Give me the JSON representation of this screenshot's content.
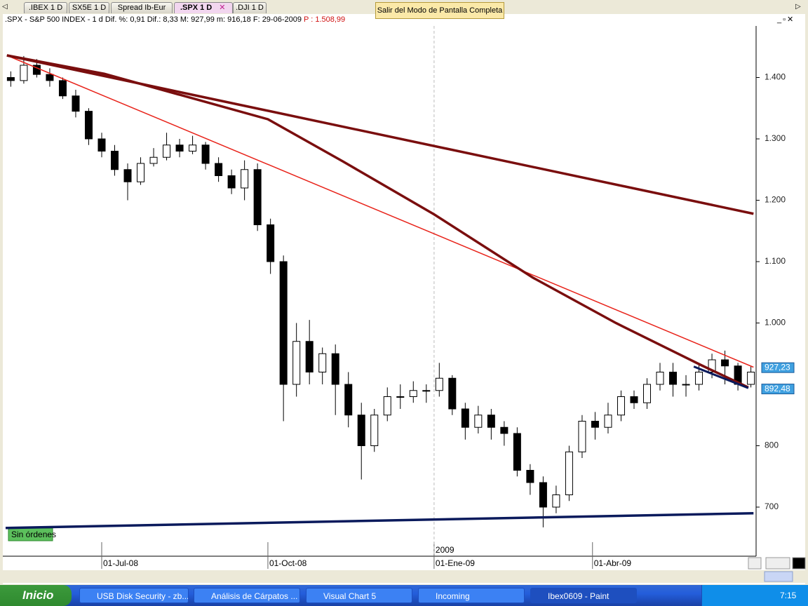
{
  "tabs": [
    ".IBEX 1 D",
    "SX5E 1 D",
    "Spread Ib-Eur",
    ".SPX 1 D",
    ".DJI 1 D"
  ],
  "fullscreen_button": "Salir del Modo de Pantalla Completa",
  "header": {
    "symbol": ".SPX - S&P 500 INDEX - 1 d",
    "dif_pct": "Dif. %: 0,91",
    "dif": "Dif.: 8,33",
    "max": "M: 927,99",
    "min": "m: 916,18",
    "date": "F: 29-06-2009",
    "price": "P : 1.508,99"
  },
  "orders_button": "Sin órdenes",
  "chart_data": {
    "type": "candlestick",
    "x": [
      2,
      7,
      12,
      17,
      22,
      27,
      32,
      37,
      42,
      47,
      52,
      57,
      62,
      67,
      72,
      77,
      82,
      87,
      92,
      97,
      102,
      107,
      112,
      117,
      122,
      127,
      132,
      137,
      142,
      147,
      152,
      157,
      162,
      167,
      172,
      177,
      182,
      187,
      192,
      197,
      202,
      207,
      212,
      217,
      222,
      227,
      232,
      237,
      242,
      247,
      252,
      257,
      262,
      267,
      272,
      277,
      282,
      287
    ],
    "open": [
      1400,
      1395,
      1420,
      1405,
      1395,
      1370,
      1345,
      1300,
      1280,
      1250,
      1230,
      1260,
      1270,
      1290,
      1280,
      1290,
      1260,
      1240,
      1220,
      1250,
      1160,
      1100,
      900,
      970,
      920,
      950,
      900,
      850,
      800,
      850,
      880,
      880,
      890,
      890,
      910,
      860,
      830,
      850,
      830,
      820,
      760,
      740,
      700,
      720,
      790,
      840,
      830,
      850,
      880,
      870,
      900,
      920,
      900,
      900,
      920,
      940,
      930,
      900
    ],
    "high": [
      1410,
      1435,
      1430,
      1415,
      1400,
      1380,
      1350,
      1310,
      1290,
      1260,
      1270,
      1285,
      1310,
      1300,
      1305,
      1295,
      1270,
      1250,
      1265,
      1260,
      1170,
      1110,
      1000,
      1005,
      960,
      965,
      920,
      870,
      860,
      895,
      900,
      905,
      900,
      935,
      915,
      870,
      865,
      860,
      840,
      830,
      770,
      750,
      735,
      800,
      850,
      855,
      870,
      890,
      890,
      910,
      935,
      935,
      915,
      935,
      950,
      955,
      935,
      930
    ],
    "low": [
      1385,
      1390,
      1400,
      1385,
      1365,
      1335,
      1290,
      1270,
      1240,
      1200,
      1225,
      1255,
      1265,
      1270,
      1275,
      1250,
      1230,
      1210,
      1200,
      1150,
      1080,
      840,
      880,
      900,
      900,
      850,
      830,
      745,
      790,
      840,
      860,
      870,
      870,
      880,
      850,
      810,
      820,
      810,
      800,
      750,
      720,
      667,
      690,
      710,
      780,
      810,
      820,
      840,
      860,
      860,
      890,
      880,
      880,
      890,
      910,
      900,
      890,
      895
    ],
    "close": [
      1395,
      1420,
      1405,
      1395,
      1370,
      1345,
      1300,
      1280,
      1250,
      1230,
      1260,
      1270,
      1290,
      1280,
      1290,
      1260,
      1240,
      1220,
      1250,
      1160,
      1100,
      900,
      970,
      920,
      950,
      900,
      850,
      800,
      850,
      880,
      880,
      890,
      890,
      910,
      860,
      830,
      850,
      830,
      820,
      760,
      740,
      700,
      720,
      790,
      840,
      830,
      850,
      880,
      870,
      900,
      920,
      900,
      900,
      920,
      940,
      930,
      900,
      920
    ],
    "xlim": [
      0,
      289
    ],
    "ylim": [
      620,
      1484
    ],
    "yticks": [
      {
        "value": 700,
        "label": "700"
      },
      {
        "value": 800,
        "label": "800"
      },
      {
        "value": 1000,
        "label": "1.000"
      },
      {
        "value": 1100,
        "label": "1.100"
      },
      {
        "value": 1200,
        "label": "1.200"
      },
      {
        "value": 1300,
        "label": "1.300"
      },
      {
        "value": 1400,
        "label": "1.400"
      }
    ],
    "xticks": [
      {
        "value": 37,
        "label": "01-Jul-08"
      },
      {
        "value": 101,
        "label": "01-Oct-08"
      },
      {
        "value": 165,
        "label": "01-Ene-09"
      },
      {
        "value": 226,
        "label": "01-Abr-09"
      }
    ],
    "year_marker": {
      "value": 165,
      "label": "2009"
    },
    "overlays": [
      {
        "color": "#e8231a",
        "width": 1.5,
        "x": [
          0.5,
          288
        ],
        "values": [
          1436,
          928
        ]
      },
      {
        "color": "#7a0e0e",
        "width": 3.5,
        "x": [
          0.5,
          288
        ],
        "values": [
          1436,
          1178
        ]
      },
      {
        "color": "#7a0e0e",
        "width": 3.5,
        "x": [
          0.5,
          38,
          101,
          130,
          165,
          203,
          235,
          268,
          286
        ],
        "values": [
          1436,
          1406,
          1332,
          1263,
          1177,
          1074,
          1000,
          931,
          895
        ]
      },
      {
        "color": "#0a1a5c",
        "width": 3.5,
        "x": [
          0,
          288
        ],
        "values": [
          666,
          690
        ]
      },
      {
        "color": "#0a1a5c",
        "width": 3,
        "x": [
          265,
          286
        ],
        "values": [
          929,
          894
        ]
      }
    ],
    "price_tags": [
      {
        "value": 927.23,
        "label": "927,23"
      },
      {
        "value": 892.48,
        "label": "892,48"
      }
    ]
  },
  "taskbar": {
    "start": "Inicio",
    "tasks": [
      "USB Disk Security - zb...",
      "Análisis de Cárpatos ...",
      "Visual Chart 5",
      "Incoming",
      "Ibex0609 - Paint"
    ],
    "clock": "7:15"
  }
}
